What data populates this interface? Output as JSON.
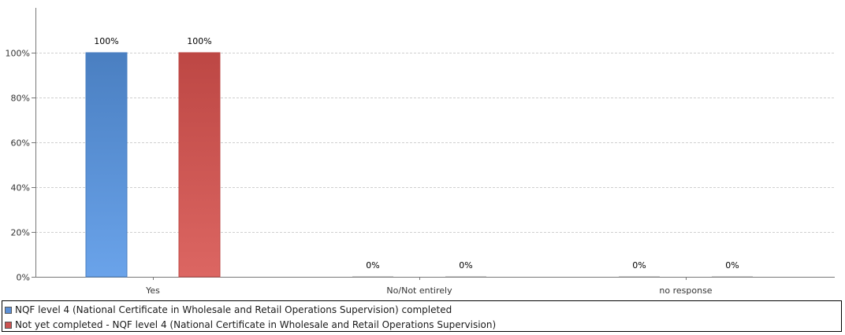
{
  "chart_data": {
    "type": "bar",
    "categories": [
      "Yes",
      "No/Not entirely",
      "no response"
    ],
    "series": [
      {
        "name": "NQF level 4 (National Certificate in Wholesale and Retail Operations Supervision) completed",
        "values": [
          100,
          0,
          0
        ],
        "labels": [
          "100%",
          "0%",
          "0%"
        ],
        "color": "#5b8fd6",
        "color_light": "#6aa3ea",
        "color_dark": "#4a7fc1"
      },
      {
        "name": "Not yet completed - NQF level 4 (National Certificate in Wholesale and Retail Operations Supervision)",
        "values": [
          100,
          0,
          0
        ],
        "labels": [
          "100%",
          "0%",
          "0%"
        ],
        "color": "#cc5250",
        "color_light": "#dc6662",
        "color_dark": "#bd4744"
      }
    ],
    "y_ticks": [
      0,
      20,
      40,
      60,
      80,
      100
    ],
    "y_tick_labels": [
      "0%",
      "20%",
      "40%",
      "60%",
      "80%",
      "100%"
    ],
    "ylim": [
      0,
      120
    ],
    "grid": true,
    "legend_position": "bottom"
  }
}
